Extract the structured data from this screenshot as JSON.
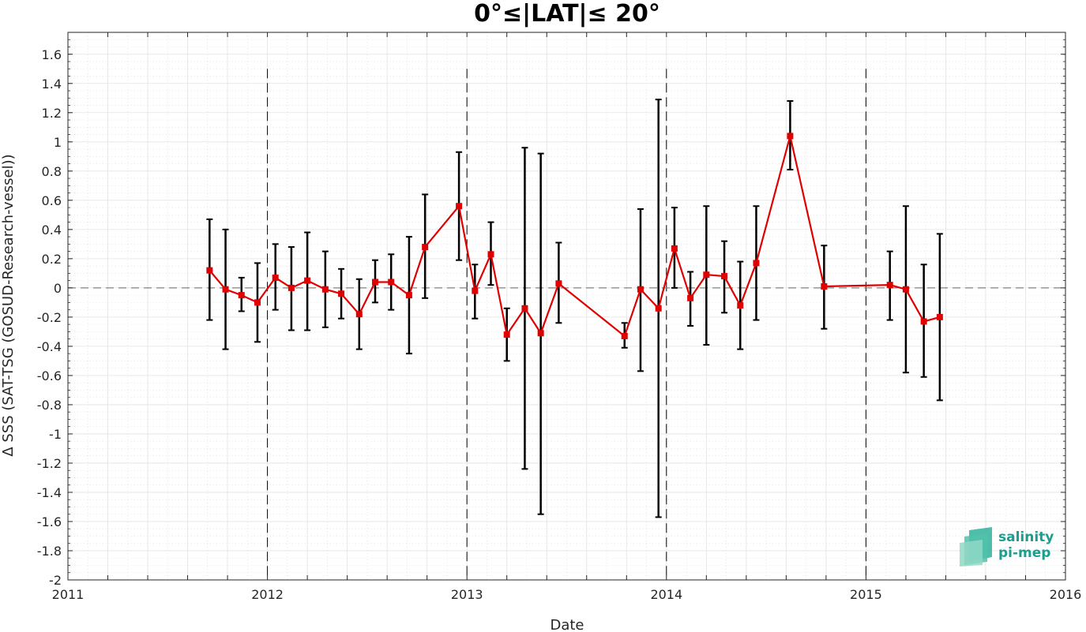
{
  "chart_data": {
    "type": "line",
    "title": "0°≤|LAT|≤ 20°",
    "xlabel": "Date",
    "ylabel": "Δ SSS (SAT-TSG (GOSUD-Research-vessel))",
    "xlim": [
      2011,
      2016
    ],
    "ylim": [
      -2,
      1.75
    ],
    "x_ticks": [
      "2011",
      "2012",
      "2013",
      "2014",
      "2015",
      "2016"
    ],
    "y_ticks": [
      "-2",
      "-1.8",
      "-1.6",
      "-1.4",
      "-1.2",
      "-1",
      "-0.8",
      "-0.6",
      "-0.4",
      "-0.2",
      "0",
      "0.2",
      "0.4",
      "0.6",
      "0.8",
      "1",
      "1.2",
      "1.4",
      "1.6"
    ],
    "grid": true,
    "reference_line": 0,
    "year_lines": [
      2012,
      2013,
      2014,
      2015
    ],
    "colors": {
      "line": "#e00000",
      "errorbar": "#000000",
      "zero_line": "#808080",
      "logo": "#1a9e8f"
    },
    "series": [
      {
        "points": [
          {
            "x": 2011.71,
            "y": 0.12,
            "low": -0.22,
            "high": 0.47
          },
          {
            "x": 2011.79,
            "y": -0.01,
            "low": -0.42,
            "high": 0.4
          },
          {
            "x": 2011.87,
            "y": -0.05,
            "low": -0.16,
            "high": 0.07
          },
          {
            "x": 2011.95,
            "y": -0.1,
            "low": -0.37,
            "high": 0.17
          },
          {
            "x": 2012.04,
            "y": 0.07,
            "low": -0.15,
            "high": 0.3
          },
          {
            "x": 2012.12,
            "y": 0.0,
            "low": -0.29,
            "high": 0.28
          },
          {
            "x": 2012.2,
            "y": 0.05,
            "low": -0.29,
            "high": 0.38
          },
          {
            "x": 2012.29,
            "y": -0.01,
            "low": -0.27,
            "high": 0.25
          },
          {
            "x": 2012.37,
            "y": -0.04,
            "low": -0.21,
            "high": 0.13
          },
          {
            "x": 2012.46,
            "y": -0.18,
            "low": -0.42,
            "high": 0.06
          },
          {
            "x": 2012.54,
            "y": 0.04,
            "low": -0.1,
            "high": 0.19
          },
          {
            "x": 2012.62,
            "y": 0.04,
            "low": -0.15,
            "high": 0.23
          },
          {
            "x": 2012.71,
            "y": -0.05,
            "low": -0.45,
            "high": 0.35
          },
          {
            "x": 2012.79,
            "y": 0.28,
            "low": -0.07,
            "high": 0.64
          },
          {
            "x": 2012.96,
            "y": 0.56,
            "low": 0.19,
            "high": 0.93
          },
          {
            "x": 2013.04,
            "y": -0.02,
            "low": -0.21,
            "high": 0.16
          },
          {
            "x": 2013.12,
            "y": 0.23,
            "low": 0.02,
            "high": 0.45
          },
          {
            "x": 2013.2,
            "y": -0.32,
            "low": -0.5,
            "high": -0.14
          },
          {
            "x": 2013.29,
            "y": -0.14,
            "low": -1.24,
            "high": 0.96
          },
          {
            "x": 2013.37,
            "y": -0.31,
            "low": -1.55,
            "high": 0.92
          },
          {
            "x": 2013.46,
            "y": 0.03,
            "low": -0.24,
            "high": 0.31
          },
          {
            "x": 2013.79,
            "y": -0.33,
            "low": -0.41,
            "high": -0.24
          },
          {
            "x": 2013.87,
            "y": -0.01,
            "low": -0.57,
            "high": 0.54
          },
          {
            "x": 2013.96,
            "y": -0.14,
            "low": -1.57,
            "high": 1.29
          },
          {
            "x": 2014.04,
            "y": 0.27,
            "low": 0.0,
            "high": 0.55
          },
          {
            "x": 2014.12,
            "y": -0.07,
            "low": -0.26,
            "high": 0.11
          },
          {
            "x": 2014.2,
            "y": 0.09,
            "low": -0.39,
            "high": 0.56
          },
          {
            "x": 2014.29,
            "y": 0.08,
            "low": -0.17,
            "high": 0.32
          },
          {
            "x": 2014.37,
            "y": -0.12,
            "low": -0.42,
            "high": 0.18
          },
          {
            "x": 2014.45,
            "y": 0.17,
            "low": -0.22,
            "high": 0.56
          },
          {
            "x": 2014.62,
            "y": 1.04,
            "low": 0.81,
            "high": 1.28
          },
          {
            "x": 2014.79,
            "y": 0.01,
            "low": -0.28,
            "high": 0.29
          },
          {
            "x": 2015.12,
            "y": 0.02,
            "low": -0.22,
            "high": 0.25
          },
          {
            "x": 2015.2,
            "y": -0.01,
            "low": -0.58,
            "high": 0.56
          },
          {
            "x": 2015.29,
            "y": -0.23,
            "low": -0.61,
            "high": 0.16
          },
          {
            "x": 2015.37,
            "y": -0.2,
            "low": -0.77,
            "high": 0.37
          }
        ]
      }
    ]
  },
  "logo": {
    "line1": "salinity",
    "line2": "pi-mep"
  }
}
